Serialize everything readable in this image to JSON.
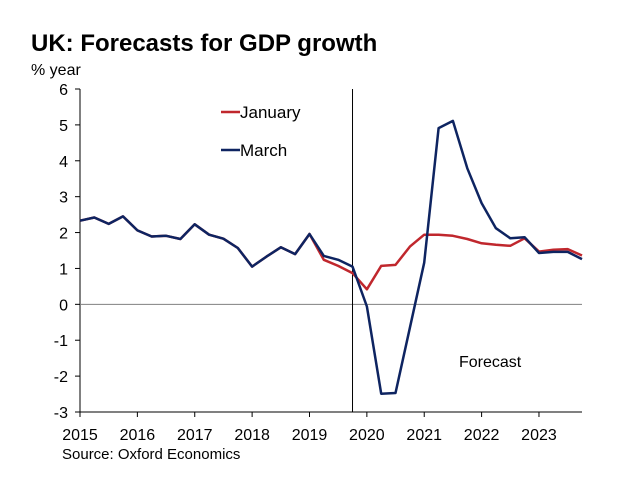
{
  "chart_data": {
    "type": "line",
    "title": "UK: Forecasts for GDP growth",
    "ylabel": "% year",
    "xlabel": "",
    "source": "Source: Oxford Economics",
    "annotation": "Forecast",
    "forecast_start": 2019.75,
    "ylim": [
      -3,
      6
    ],
    "xlim": [
      2015,
      2023.75
    ],
    "yticks": [
      -3,
      -2,
      -1,
      0,
      1,
      2,
      3,
      4,
      5,
      6
    ],
    "xticks": [
      2015,
      2016,
      2017,
      2018,
      2019,
      2020,
      2021,
      2022,
      2023
    ],
    "legend_position": "top-left",
    "x": [
      2015,
      2015.25,
      2015.5,
      2015.75,
      2016,
      2016.25,
      2016.5,
      2016.75,
      2017,
      2017.25,
      2017.5,
      2017.75,
      2018,
      2018.25,
      2018.5,
      2018.75,
      2019,
      2019.25,
      2019.5,
      2019.75,
      2020,
      2020.25,
      2020.5,
      2020.75,
      2021,
      2021.25,
      2021.5,
      2021.75,
      2022,
      2022.25,
      2022.5,
      2022.75,
      2023,
      2023.25,
      2023.5,
      2023.75
    ],
    "series": [
      {
        "name": "January",
        "color": "#c0272d",
        "values": [
          2.33,
          2.42,
          2.24,
          2.45,
          2.06,
          1.89,
          1.91,
          1.82,
          2.23,
          1.94,
          1.83,
          1.57,
          1.05,
          1.33,
          1.59,
          1.4,
          1.96,
          1.24,
          1.07,
          0.87,
          0.42,
          1.07,
          1.1,
          1.61,
          1.94,
          1.94,
          1.91,
          1.82,
          1.7,
          1.66,
          1.63,
          1.84,
          1.47,
          1.52,
          1.54,
          1.36
        ]
      },
      {
        "name": "March",
        "color": "#0e2461",
        "values": [
          2.33,
          2.42,
          2.24,
          2.45,
          2.06,
          1.89,
          1.91,
          1.82,
          2.23,
          1.94,
          1.83,
          1.57,
          1.05,
          1.33,
          1.59,
          1.4,
          1.96,
          1.35,
          1.24,
          1.05,
          -0.06,
          -2.49,
          -2.47,
          -0.65,
          1.16,
          4.91,
          5.11,
          3.79,
          2.82,
          2.12,
          1.84,
          1.87,
          1.43,
          1.46,
          1.46,
          1.26
        ]
      }
    ]
  }
}
